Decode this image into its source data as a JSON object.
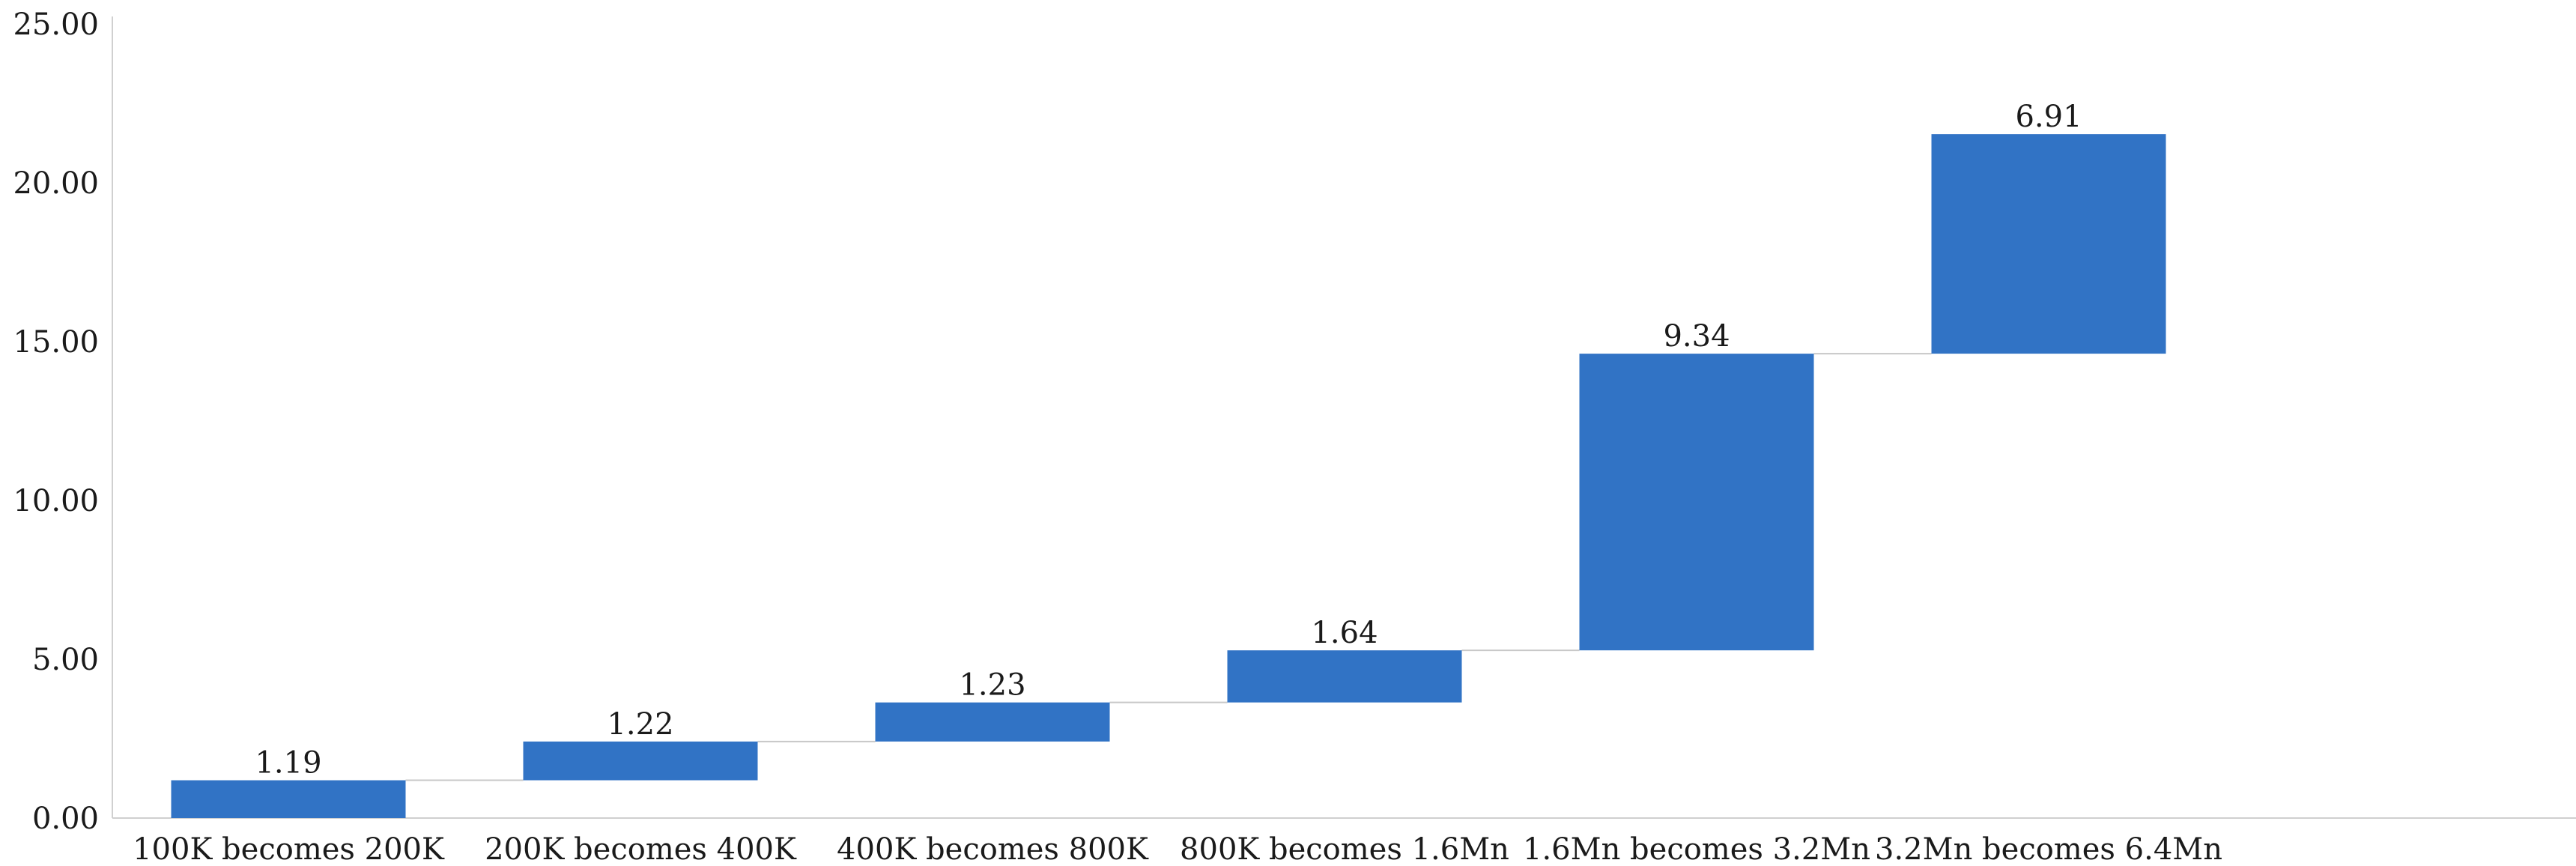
{
  "chart_data": {
    "type": "waterfall",
    "categories": [
      "100K becomes 200K",
      "200K becomes 400K",
      "400K becomes 800K",
      "800K becomes 1.6Mn",
      "1.6Mn becomes 3.2Mn",
      "3.2Mn becomes 6.4Mn"
    ],
    "values": [
      1.19,
      1.22,
      1.23,
      1.64,
      9.34,
      6.91
    ],
    "value_labels": [
      "1.19",
      "1.22",
      "1.23",
      "1.64",
      "9.34",
      "6.91"
    ],
    "ylim": [
      0,
      25
    ],
    "y_ticks": [
      "0.00",
      "5.00",
      "10.00",
      "15.00",
      "20.00",
      "25.00"
    ],
    "grid": false,
    "connector_lines": true,
    "legend": "none",
    "colors": {
      "bar": "#3173c5",
      "connector": "#c8c8c8",
      "axis": "#d0d0d0"
    }
  }
}
